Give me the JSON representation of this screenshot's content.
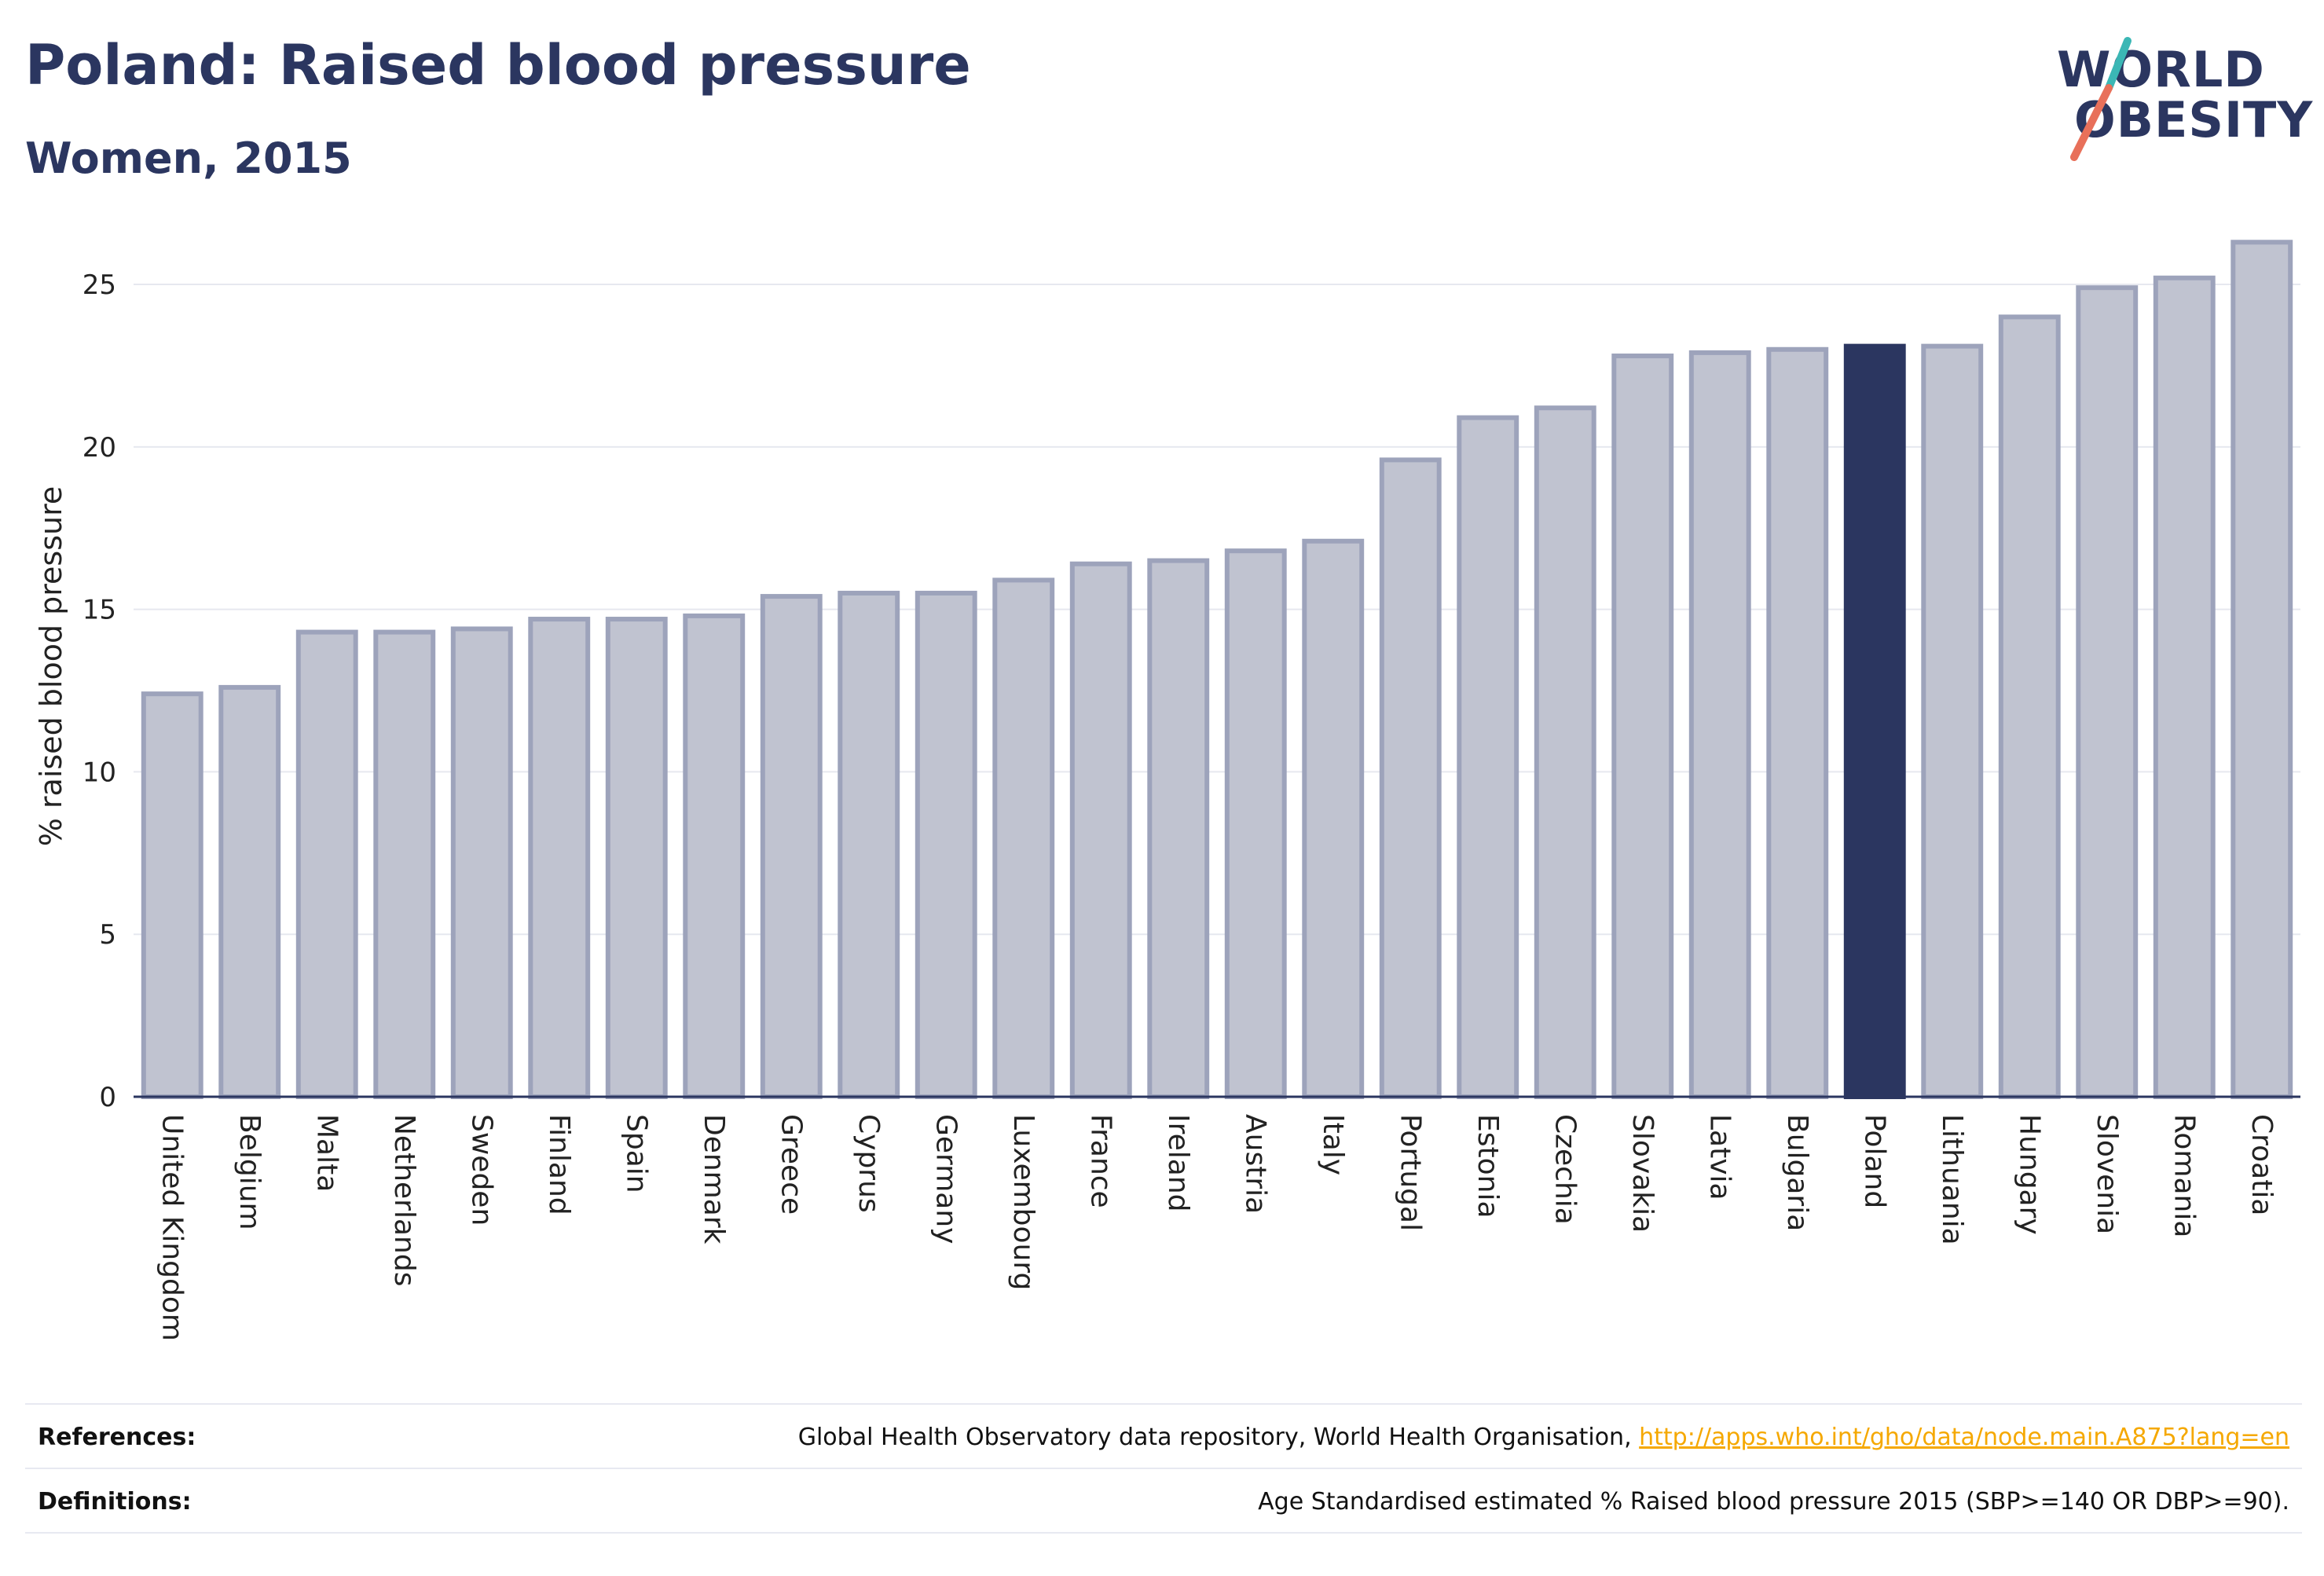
{
  "header": {
    "title": "Poland: Raised blood pressure",
    "subtitle": "Women, 2015"
  },
  "logo": {
    "line1": "WORLD",
    "line2": "OBESITY",
    "colors": {
      "text": "#2b3660",
      "slash_top": "#3bb7b5",
      "slash_bottom": "#e8705a"
    }
  },
  "chart_data": {
    "type": "bar",
    "title": "Poland: Raised blood pressure",
    "subtitle": "Women, 2015",
    "xlabel": "",
    "ylabel": "% raised blood pressure",
    "ylim": [
      0,
      26.5
    ],
    "yticks": [
      0,
      5,
      10,
      15,
      20,
      25
    ],
    "grid": true,
    "highlight": "Poland",
    "colors": {
      "bar": "#c0c3d0",
      "bar_border": "#9da3bb",
      "highlight": "#2b3660",
      "grid": "#e6e8ef",
      "axis": "#2b3660"
    },
    "categories": [
      "United Kingdom",
      "Belgium",
      "Malta",
      "Netherlands",
      "Sweden",
      "Finland",
      "Spain",
      "Denmark",
      "Greece",
      "Cyprus",
      "Germany",
      "Luxembourg",
      "France",
      "Ireland",
      "Austria",
      "Italy",
      "Portugal",
      "Estonia",
      "Czechia",
      "Slovakia",
      "Latvia",
      "Bulgaria",
      "Poland",
      "Lithuania",
      "Hungary",
      "Slovenia",
      "Romania",
      "Croatia"
    ],
    "values": [
      12.4,
      12.6,
      14.3,
      14.3,
      14.4,
      14.7,
      14.7,
      14.8,
      15.4,
      15.5,
      15.5,
      15.9,
      16.4,
      16.5,
      16.8,
      17.1,
      19.6,
      20.9,
      21.2,
      22.8,
      22.9,
      23.0,
      23.1,
      23.1,
      24.0,
      24.9,
      25.2,
      26.3
    ]
  },
  "footer": {
    "references_label": "References:",
    "references_text": "Global Health Observatory data repository, World Health Organisation, ",
    "references_link": "http://apps.who.int/gho/data/node.main.A875?lang=en",
    "definitions_label": "Definitions:",
    "definitions_text": "Age Standardised estimated % Raised blood pressure 2015 (SBP>=140 OR DBP>=90)."
  }
}
